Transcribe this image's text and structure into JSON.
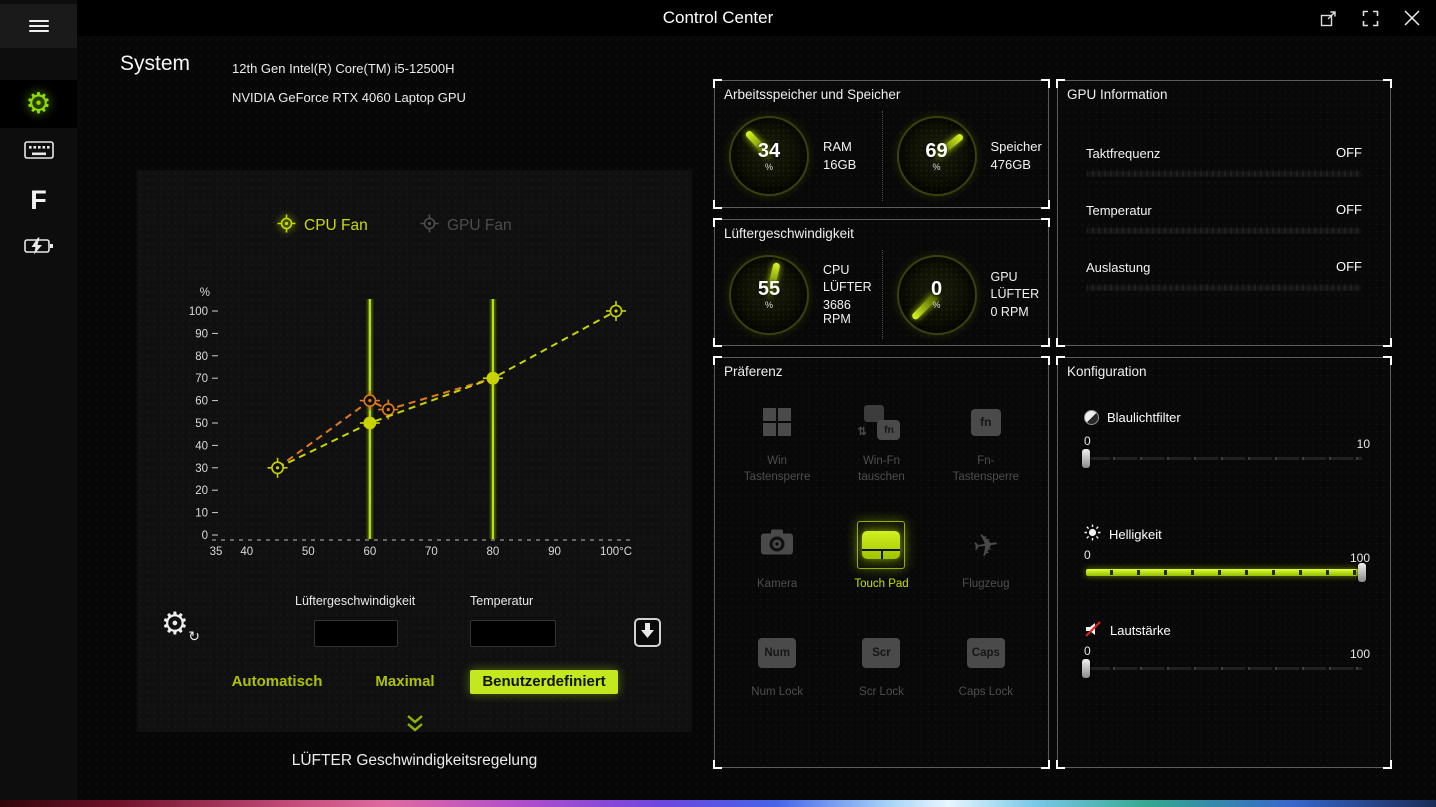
{
  "colors": {
    "accent": "#c8e000",
    "accent_bright": "#d6f520",
    "orange": "#e07a1e"
  },
  "titlebar": {
    "title": "Control Center"
  },
  "header": {
    "title": "System",
    "cpu": "12th Gen Intel(R) Core(TM) i5-12500H",
    "gpu": "NVIDIA GeForce RTX 4060 Laptop GPU"
  },
  "fan_panel": {
    "tabs": [
      {
        "label": "CPU Fan",
        "active": true
      },
      {
        "label": "GPU Fan",
        "active": false
      }
    ],
    "speed_input_label": "Lüftergeschwindigkeit",
    "temp_input_label": "Temperatur",
    "speed_input_value": "",
    "temp_input_value": "",
    "mode_buttons": [
      {
        "label": "Automatisch",
        "active": false
      },
      {
        "label": "Maximal",
        "active": false
      },
      {
        "label": "Benutzerdefiniert",
        "active": true
      }
    ],
    "footer": "LÜFTER Geschwindigkeitsregelung"
  },
  "chart_data": {
    "type": "line",
    "x_unit": "°C",
    "y_unit": "%",
    "xlim": [
      35,
      100
    ],
    "ylim": [
      0,
      100
    ],
    "x_ticks": [
      35,
      40,
      50,
      60,
      70,
      80,
      90,
      100
    ],
    "y_ticks": [
      0,
      10,
      20,
      30,
      40,
      50,
      60,
      70,
      80,
      90,
      100
    ],
    "guide_lines_x": [
      60,
      80
    ],
    "series": [
      {
        "name": "GPU Fan",
        "color": "#e07a1e",
        "points": [
          [
            45,
            30
          ],
          [
            60,
            60
          ],
          [
            63,
            56
          ],
          [
            80,
            70
          ]
        ],
        "markers": [
          {
            "i": 1,
            "filled": false
          },
          {
            "i": 2,
            "filled": false
          }
        ]
      },
      {
        "name": "CPU Fan",
        "color": "#c8d400",
        "points": [
          [
            45,
            30
          ],
          [
            60,
            50
          ],
          [
            80,
            70
          ],
          [
            100,
            100
          ]
        ],
        "markers": [
          {
            "i": 0,
            "filled": false
          },
          {
            "i": 1,
            "filled": true
          },
          {
            "i": 2,
            "filled": true
          },
          {
            "i": 3,
            "filled": false
          }
        ]
      }
    ]
  },
  "memory_panel": {
    "title": "Arbeitsspeicher und Speicher",
    "gauges": [
      {
        "value": 34,
        "unit": "%",
        "lines": [
          "RAM",
          "16GB"
        ]
      },
      {
        "value": 69,
        "unit": "%",
        "lines": [
          "Speicher",
          "476GB"
        ]
      }
    ]
  },
  "fanspeed_panel": {
    "title": "Lüftergeschwindigkeit",
    "gauges": [
      {
        "value": 55,
        "unit": "%",
        "lines": [
          "CPU",
          "LÜFTER",
          "3686 RPM"
        ]
      },
      {
        "value": 0,
        "unit": "%",
        "lines": [
          "GPU",
          "LÜFTER",
          "0 RPM"
        ]
      }
    ]
  },
  "preference_panel": {
    "title": "Präferenz",
    "items": [
      {
        "line1": "Win",
        "line2": "Tastensperre",
        "icon": "windows-icon",
        "active": false
      },
      {
        "line1": "Win-Fn",
        "line2": "tauschen",
        "icon": "win-fn-swap-icon",
        "key_text": "fn",
        "active": false
      },
      {
        "line1": "Fn-",
        "line2": "Tastensperre",
        "icon": "fn-key-icon",
        "key_text": "fn",
        "active": false
      },
      {
        "line1": "Kamera",
        "icon": "camera-icon",
        "active": false
      },
      {
        "line1": "Touch Pad",
        "icon": "touchpad-icon",
        "active": true
      },
      {
        "line1": "Flugzeug",
        "icon": "airplane-icon",
        "active": false
      },
      {
        "line1": "Num Lock",
        "icon": "num-key-icon",
        "key_text": "Num",
        "active": false
      },
      {
        "line1": "Scr Lock",
        "icon": "scr-key-icon",
        "key_text": "Scr",
        "active": false
      },
      {
        "line1": "Caps Lock",
        "icon": "caps-key-icon",
        "key_text": "Caps",
        "active": false
      }
    ]
  },
  "gpu_panel": {
    "title": "GPU Information",
    "rows": [
      {
        "label": "Taktfrequenz",
        "value": "OFF",
        "bar_pct": 0
      },
      {
        "label": "Temperatur",
        "value": "OFF",
        "bar_pct": 0
      },
      {
        "label": "Auslastung",
        "value": "OFF",
        "bar_pct": 0
      }
    ]
  },
  "config_panel": {
    "title": "Konfiguration",
    "sliders": [
      {
        "label": "Blaulichtfilter",
        "min": 0,
        "max": 10,
        "value": 0,
        "icon": "bluelight-icon"
      },
      {
        "label": "Helligkeit",
        "min": 0,
        "max": 100,
        "value": 100,
        "icon": "brightness-icon"
      },
      {
        "label": "Lautstärke",
        "min": 0,
        "max": 100,
        "value": 0,
        "icon": "volume-muted-icon"
      }
    ]
  }
}
